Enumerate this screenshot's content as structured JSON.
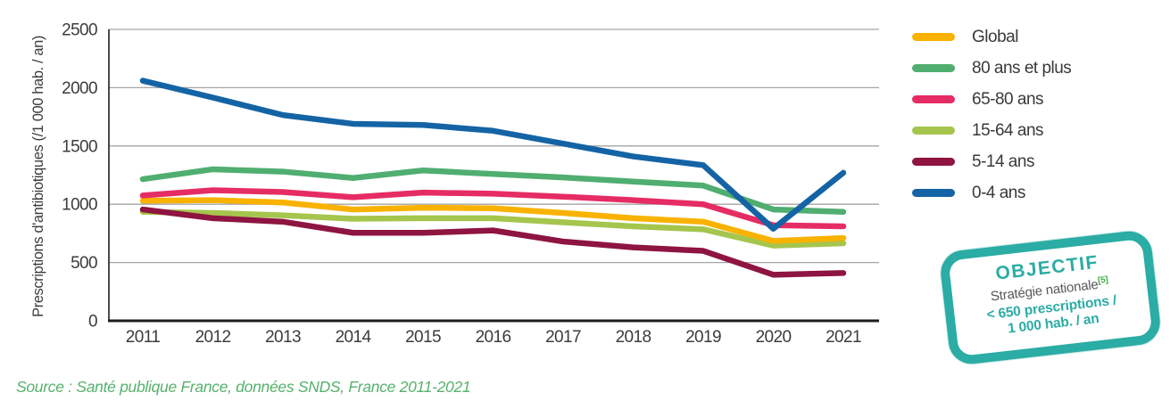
{
  "chart_data": {
    "type": "line",
    "title": "",
    "xlabel": "",
    "ylabel": "Prescriptions d'antibiotiques (/1 000 hab. / an)",
    "ylim": [
      0,
      2500
    ],
    "yticks": [
      0,
      500,
      1000,
      1500,
      2000,
      2500
    ],
    "x": [
      "2011",
      "2012",
      "2013",
      "2014",
      "2015",
      "2016",
      "2017",
      "2018",
      "2019",
      "2020",
      "2021"
    ],
    "grid": true,
    "legend_position": "right",
    "grid_color": "#A5A5A5",
    "axis_color": "#1D1D1B",
    "tick_color": "#3C3C3B",
    "draw_order": [
      3,
      4,
      0,
      2,
      1,
      5
    ],
    "series": [
      {
        "name": "Global",
        "color": "#F9B200",
        "values": [
          1030,
          1035,
          1015,
          955,
          970,
          965,
          925,
          880,
          850,
          685,
          710
        ]
      },
      {
        "name": "80 ans et plus",
        "color": "#4FAE70",
        "values": [
          1215,
          1300,
          1280,
          1225,
          1290,
          1260,
          1230,
          1195,
          1160,
          955,
          935
        ]
      },
      {
        "name": "65-80 ans",
        "color": "#E62C64",
        "values": [
          1075,
          1120,
          1105,
          1060,
          1100,
          1090,
          1065,
          1035,
          1000,
          820,
          810
        ]
      },
      {
        "name": "15-64 ans",
        "color": "#A5C54D",
        "values": [
          935,
          925,
          905,
          875,
          880,
          880,
          845,
          810,
          785,
          645,
          665
        ]
      },
      {
        "name": "5-14 ans",
        "color": "#8E1441",
        "values": [
          955,
          880,
          850,
          755,
          755,
          775,
          680,
          630,
          600,
          395,
          410
        ]
      },
      {
        "name": "0-4 ans",
        "color": "#1464A5",
        "values": [
          2060,
          1915,
          1765,
          1690,
          1680,
          1630,
          1520,
          1410,
          1335,
          790,
          1270
        ]
      }
    ]
  },
  "badge": {
    "title": "OBJECTIF",
    "subtitle": "Stratégie nationale",
    "reference": "[5]",
    "target_line1": "< 650 prescriptions /",
    "target_line2": "1 000 hab. / an",
    "border_color": "#2BACA4",
    "text_color": "#2BACA4",
    "subtitle_color": "#58585A",
    "reference_color": "#3DAE4A"
  },
  "source": {
    "text": "Source : Santé publique France, données SNDS, France 2011-2021",
    "color": "#56B16C"
  }
}
